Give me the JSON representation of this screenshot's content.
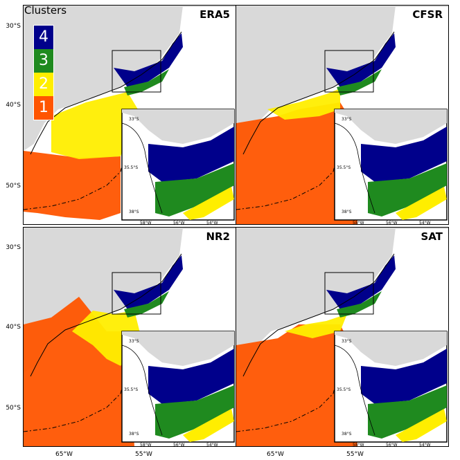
{
  "legend": {
    "title": "Clusters",
    "items": [
      {
        "label": "4",
        "color": "#00008b"
      },
      {
        "label": "3",
        "color": "#1f8a1f"
      },
      {
        "label": "2",
        "color": "#ffee00"
      },
      {
        "label": "1",
        "color": "#ff5500"
      }
    ]
  },
  "colors": {
    "land": "#d9d9d9",
    "ocean": "#ffffff",
    "c1": "#ff5500",
    "c2": "#ffee00",
    "c3": "#1f8a1f",
    "c4": "#00008b"
  },
  "lat_labels": [
    "30°S",
    "40°S",
    "50°S",
    "30°S",
    "40°S",
    "50°S"
  ],
  "lon_labels": [
    "65°W",
    "55°W",
    "65°W",
    "55°W"
  ],
  "inset_labels": {
    "lat_top": "33°S",
    "lat_mid": "35.5°S",
    "lat_bot": "38°S",
    "lon": [
      "58°W",
      "56°W",
      "54°W"
    ]
  },
  "panels": [
    {
      "title": "ERA5"
    },
    {
      "title": "CFSR"
    },
    {
      "title": "NR2"
    },
    {
      "title": "SAT"
    }
  ]
}
